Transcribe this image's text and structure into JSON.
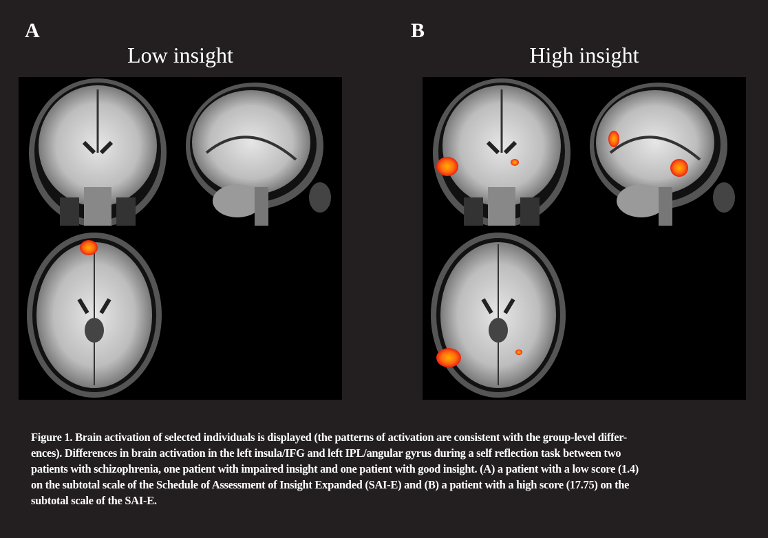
{
  "panels": [
    {
      "letter": "A",
      "title": "Low insight",
      "activation": {
        "coronal": [],
        "sagittal": [],
        "axial": [
          "frontal-medial"
        ]
      }
    },
    {
      "letter": "B",
      "title": "High insight",
      "activation": {
        "coronal": [
          "left-insula",
          "right-small"
        ],
        "sagittal": [
          "ipl",
          "frontal"
        ],
        "axial": [
          "left-insula",
          "right-small"
        ]
      }
    }
  ],
  "colors": {
    "background": "#231f20",
    "activation_core": "#ffb000",
    "activation_edge": "#e8230f"
  },
  "caption": {
    "lines": [
      "Figure 1. Brain activation of selected individuals is displayed (the patterns of activation are consistent with the group-level differ-",
      "ences). Differences in brain activation in the left insula/IFG and left IPL/angular gyrus during a self reflection task between two",
      "patients with schizophrenia, one patient with impaired insight and one patient with good insight. (A) a patient with a low score (1.4)",
      "on the subtotal scale of the Schedule of Assessment of Insight Expanded (SAI-E) and (B) a patient with a high score (17.75) on the",
      "subtotal scale of the SAI-E."
    ]
  }
}
